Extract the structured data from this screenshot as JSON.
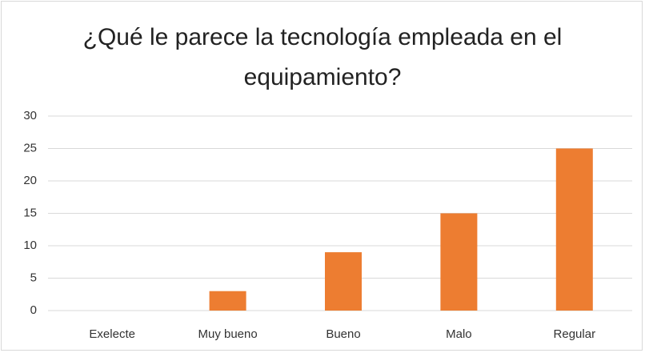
{
  "chart_data": {
    "type": "bar",
    "title": "¿Qué le parece la tecnología empleada en el equipamiento?",
    "categories": [
      "Exelecte",
      "Muy bueno",
      "Bueno",
      "Malo",
      "Regular"
    ],
    "values": [
      0,
      3,
      9,
      15,
      25
    ],
    "color": "#ed7d31",
    "ylim": [
      0,
      30
    ],
    "yticks": [
      0,
      5,
      10,
      15,
      20,
      25,
      30
    ],
    "grid": true
  }
}
